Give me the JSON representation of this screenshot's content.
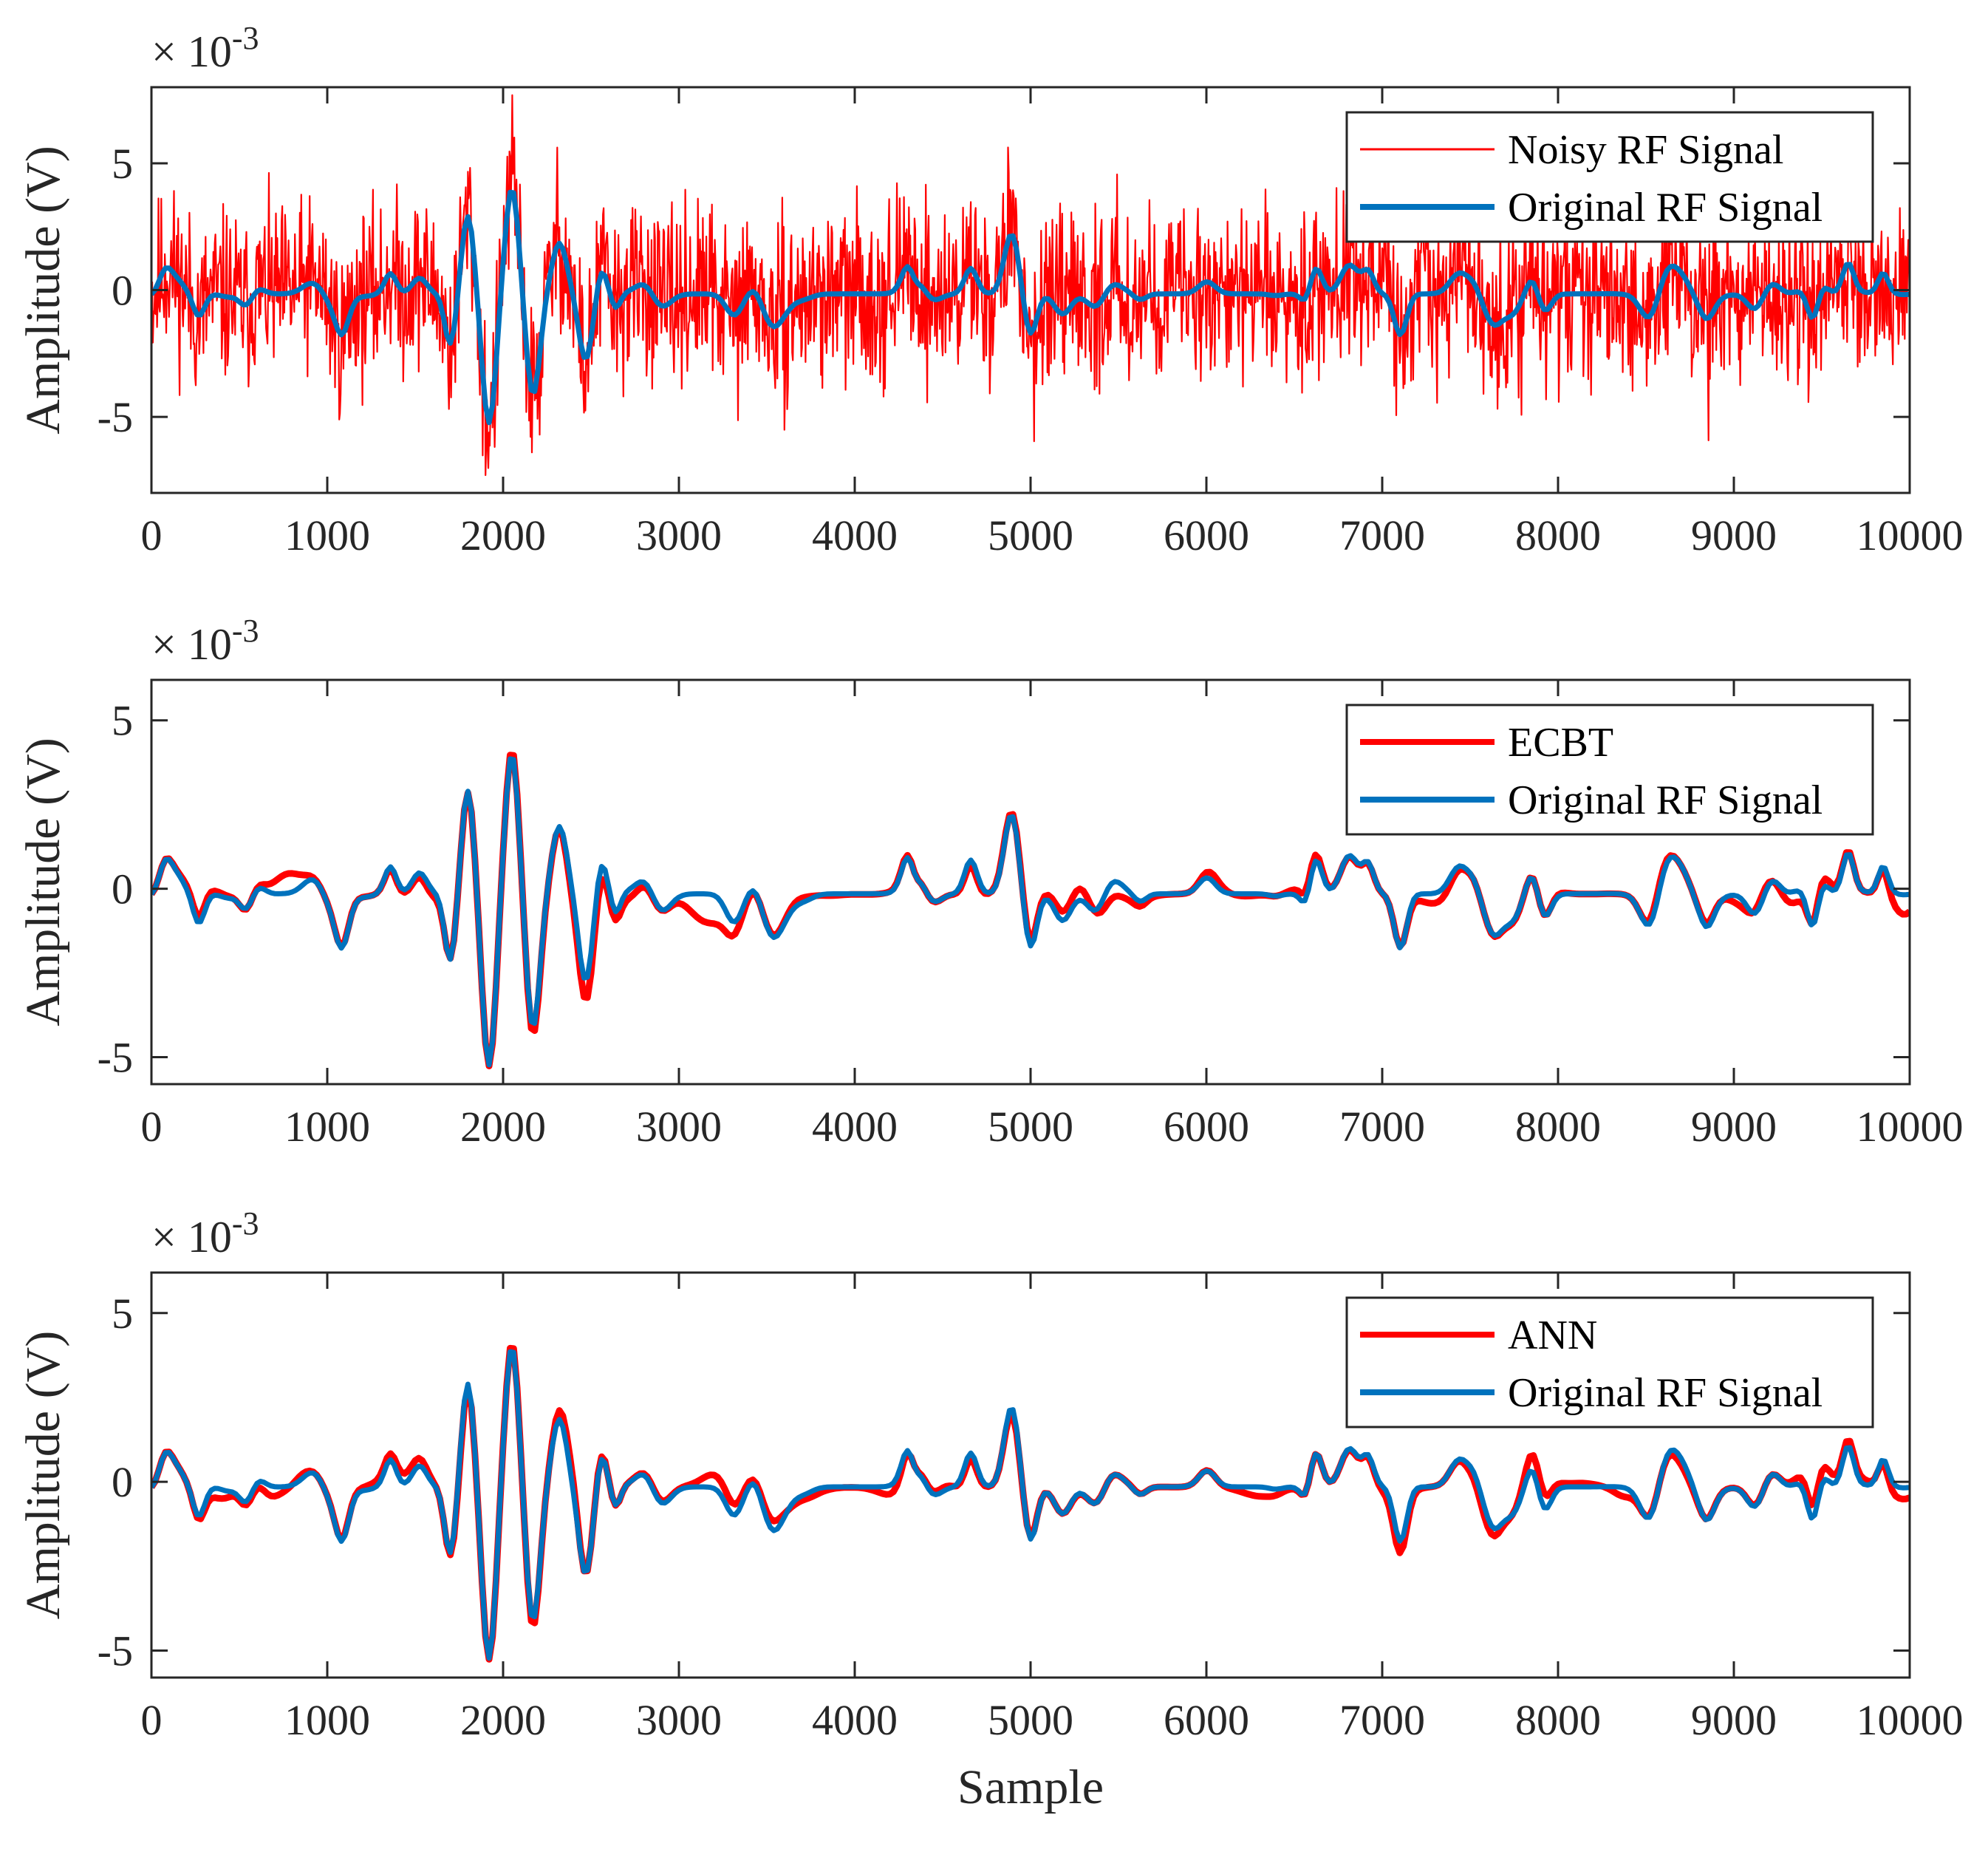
{
  "chart_data": [
    {
      "type": "line",
      "title": "",
      "xlabel": "",
      "ylabel": "Amplitude (V)",
      "exponent": {
        "base": "× 10",
        "power": "-3"
      },
      "xlim": [
        0,
        10000
      ],
      "ylim": [
        -8,
        8
      ],
      "xticks": [
        "0",
        "1000",
        "2000",
        "3000",
        "4000",
        "5000",
        "6000",
        "7000",
        "8000",
        "9000",
        "10000"
      ],
      "yticks": [
        {
          "value": 5,
          "label": "5"
        },
        {
          "value": 0,
          "label": "0"
        },
        {
          "value": -5,
          "label": "-5"
        }
      ],
      "legend_position": "top-right",
      "series": [
        {
          "name": "Noisy RF Signal",
          "color": "#ff0000",
          "kind": "noisy",
          "noise_amplitude": 1.5,
          "seed": 11
        },
        {
          "name": "Original RF Signal",
          "color": "#0072bd",
          "kind": "clean"
        }
      ],
      "key_points": [
        [
          0,
          -0.2
        ],
        [
          500,
          -0.5
        ],
        [
          1800,
          3.0
        ],
        [
          1920,
          -5.0
        ],
        [
          2050,
          4.2
        ],
        [
          2170,
          -3.9
        ],
        [
          2320,
          2.0
        ],
        [
          2470,
          -2.6
        ],
        [
          4880,
          1.7
        ],
        [
          5000,
          -1.5
        ],
        [
          6620,
          1.0
        ],
        [
          7100,
          -1.3
        ],
        [
          9650,
          1.0
        ],
        [
          10000,
          -0.2
        ]
      ]
    },
    {
      "type": "line",
      "title": "",
      "xlabel": "",
      "ylabel": "Amplitude (V)",
      "exponent": {
        "base": "× 10",
        "power": "-3"
      },
      "xlim": [
        0,
        10000
      ],
      "ylim": [
        -5.8,
        6.2
      ],
      "xticks": [
        "0",
        "1000",
        "2000",
        "3000",
        "4000",
        "5000",
        "6000",
        "7000",
        "8000",
        "9000",
        "10000"
      ],
      "yticks": [
        {
          "value": 5,
          "label": "5"
        },
        {
          "value": 0,
          "label": "0"
        },
        {
          "value": -5,
          "label": "-5"
        }
      ],
      "legend_position": "top-right",
      "series": [
        {
          "name": "ECBT",
          "color": "#ff0000",
          "kind": "approx",
          "deviation": 0.3,
          "seed": 23
        },
        {
          "name": "Original RF Signal",
          "color": "#0072bd",
          "kind": "clean"
        }
      ],
      "key_points": [
        [
          0,
          -0.2
        ],
        [
          1800,
          3.1
        ],
        [
          1920,
          -5.2
        ],
        [
          2050,
          4.2
        ],
        [
          2170,
          -4.2
        ],
        [
          2320,
          2.1
        ],
        [
          2470,
          -2.6
        ],
        [
          4880,
          1.8
        ],
        [
          5000,
          -1.8
        ],
        [
          6620,
          1.2
        ],
        [
          7100,
          -1.4
        ],
        [
          9650,
          1.4
        ],
        [
          10000,
          -0.2
        ]
      ]
    },
    {
      "type": "line",
      "title": "",
      "xlabel": "Sample",
      "ylabel": "Amplitude (V)",
      "exponent": {
        "base": "× 10",
        "power": "-3"
      },
      "xlim": [
        0,
        10000
      ],
      "ylim": [
        -5.8,
        6.2
      ],
      "xticks": [
        "0",
        "1000",
        "2000",
        "3000",
        "4000",
        "5000",
        "6000",
        "7000",
        "8000",
        "9000",
        "10000"
      ],
      "yticks": [
        {
          "value": 5,
          "label": "5"
        },
        {
          "value": 0,
          "label": "0"
        },
        {
          "value": -5,
          "label": "-5"
        }
      ],
      "legend_position": "top-right",
      "series": [
        {
          "name": "ANN",
          "color": "#ff0000",
          "kind": "approx",
          "deviation": 0.3,
          "seed": 37
        },
        {
          "name": "Original RF Signal",
          "color": "#0072bd",
          "kind": "clean"
        }
      ],
      "key_points": [
        [
          0,
          -0.2
        ],
        [
          1800,
          3.1
        ],
        [
          1920,
          -5.2
        ],
        [
          2050,
          4.2
        ],
        [
          2170,
          -3.9
        ],
        [
          2320,
          2.1
        ],
        [
          2470,
          -2.6
        ],
        [
          4880,
          1.8
        ],
        [
          5000,
          -1.5
        ],
        [
          6620,
          1.2
        ],
        [
          7100,
          -1.4
        ],
        [
          9650,
          1.4
        ],
        [
          10000,
          -0.2
        ]
      ]
    }
  ]
}
